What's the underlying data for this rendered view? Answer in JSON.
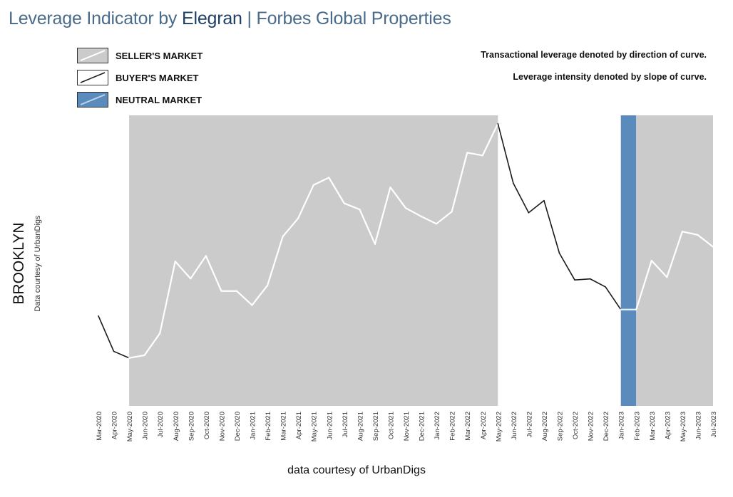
{
  "title": {
    "prefix": "Leverage Indicator by ",
    "brand": "Elegran",
    "suffix": " | Forbes Global Properties"
  },
  "legend": [
    {
      "label": "SELLER'S MARKET",
      "swatch": "seller"
    },
    {
      "label": "BUYER'S MARKET",
      "swatch": "buyer"
    },
    {
      "label": "NEUTRAL MARKET",
      "swatch": "neutral"
    }
  ],
  "notes": [
    "Transactional leverage denoted by direction of curve.",
    "Leverage intensity denoted by slope of curve."
  ],
  "ylabel": "BROOKLYN",
  "ylabel_sub": "Data courtesy of UrbanDigs",
  "footer": "data courtesy of UrbanDigs",
  "colors": {
    "seller": "#cbcbcb",
    "neutral": "#5b8bbd",
    "buyer_line": "#1a1a1a",
    "seller_line": "#ffffff",
    "title": "#4a6b8a",
    "brand": "#1f3f64"
  },
  "chart_data": {
    "type": "line",
    "categories": [
      "Mar-2020",
      "Apr-2020",
      "May-2020",
      "Jun-2020",
      "Jul-2020",
      "Aug-2020",
      "Sep-2020",
      "Oct-2020",
      "Nov-2020",
      "Dec-2020",
      "Jan-2021",
      "Feb-2021",
      "Mar-2021",
      "Apr-2021",
      "May-2021",
      "Jun-2021",
      "Jul-2021",
      "Aug-2021",
      "Sep-2021",
      "Oct-2021",
      "Nov-2021",
      "Dec-2021",
      "Jan-2022",
      "Feb-2022",
      "Mar-2022",
      "Apr-2022",
      "May-2022",
      "Jun-2022",
      "Jul-2022",
      "Aug-2022",
      "Sep-2022",
      "Oct-2022",
      "Nov-2022",
      "Dec-2022",
      "Jan-2023",
      "Feb-2023",
      "Mar-2023",
      "Apr-2023",
      "May-2023",
      "Jun-2023",
      "Jul-2023"
    ],
    "values": [
      27.5,
      14.7,
      12.3,
      13.3,
      21.2,
      47.2,
      41.0,
      49.2,
      36.5,
      36.5,
      31.4,
      38.5,
      56.2,
      62.8,
      74.8,
      77.5,
      68.2,
      66.0,
      53.5,
      74.0,
      66.5,
      63.5,
      60.8,
      65.2,
      86.5,
      85.5,
      97.0,
      75.5,
      64.8,
      69.2,
      50.2,
      40.5,
      40.9,
      38.0,
      29.8,
      29.8,
      47.5,
      41.5,
      58.0,
      56.8,
      52.5
    ],
    "ylim": [
      -5,
      100
    ],
    "regions": [
      {
        "type": "seller",
        "from": "May-2020",
        "to": "May-2022"
      },
      {
        "type": "neutral",
        "from": "Jan-2023",
        "to": "Feb-2023"
      },
      {
        "type": "seller",
        "from": "Feb-2023",
        "to": "Jul-2023"
      }
    ],
    "grid": false
  }
}
